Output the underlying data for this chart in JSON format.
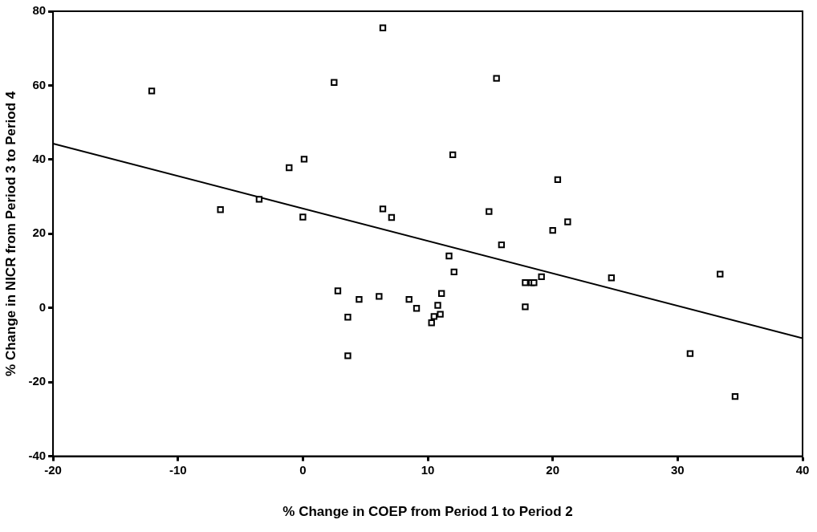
{
  "chart_data": {
    "type": "scatter",
    "xlabel": "% Change in COEP from Period 1 to Period 2",
    "ylabel": "% Change in NICR from Period 3 to Period 4",
    "xlim": [
      -20,
      40
    ],
    "xticks": [
      -20,
      -10,
      0,
      10,
      20,
      30,
      40
    ],
    "ylim": [
      -40,
      80
    ],
    "yticks": [
      -40,
      -20,
      0,
      20,
      40,
      60,
      80
    ],
    "grid": false,
    "legend": false,
    "marker": "square",
    "series": [
      {
        "color": "#000000",
        "x": [
          -12.1,
          6.4,
          2.5,
          15.5,
          -1.1,
          0.1,
          12.0,
          20.4,
          0.0,
          6.4,
          7.1,
          14.9,
          20.0,
          21.2,
          15.9,
          11.7,
          12.1,
          19.1,
          17.8,
          18.3,
          18.5,
          17.8,
          2.8,
          4.5,
          6.1,
          8.5,
          9.1,
          11.1,
          10.8,
          11.0,
          10.5,
          10.3,
          3.6,
          3.6,
          24.7,
          33.4,
          31.0,
          34.6,
          -6.6,
          -3.5
        ],
        "values": [
          58.5,
          75.5,
          60.8,
          61.9,
          37.8,
          40.1,
          41.3,
          34.6,
          24.5,
          26.7,
          24.4,
          26.0,
          20.9,
          23.2,
          17.0,
          14.0,
          9.7,
          8.4,
          6.8,
          6.8,
          6.8,
          0.3,
          4.6,
          2.3,
          3.1,
          2.3,
          -0.1,
          3.9,
          0.7,
          -1.7,
          -2.3,
          -4.0,
          -2.5,
          -12.9,
          8.1,
          9.1,
          -12.3,
          -23.9,
          26.5,
          29.3
        ]
      },
      {
        "type": "line",
        "color": "#000000",
        "marker": "none",
        "x": [
          -20,
          40
        ],
        "values": [
          44.3,
          -8.2
        ]
      }
    ]
  }
}
